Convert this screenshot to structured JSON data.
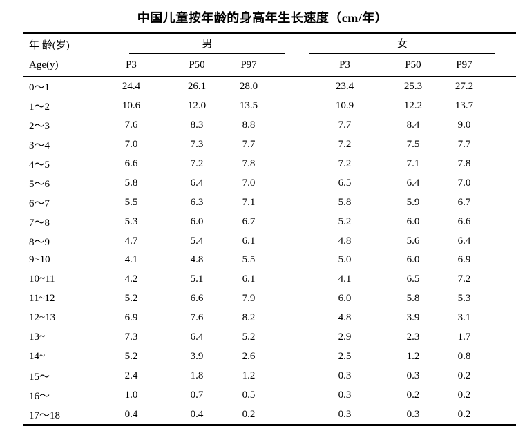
{
  "page": {
    "background": "#ffffff",
    "text_color": "#000000",
    "rule_color": "#000000"
  },
  "title": "中国儿童按年龄的身高年生长速度（cm/年）",
  "table": {
    "age_header": {
      "line1": "年 龄(岁)",
      "line2": "Age(y)"
    },
    "groups": {
      "male_label": "男",
      "female_label": "女"
    },
    "percentile_headers": [
      "P3",
      "P50",
      "P97"
    ],
    "rows": [
      {
        "age": "0～1",
        "male": [
          "24.4",
          "26.1",
          "28.0"
        ],
        "female": [
          "23.4",
          "25.3",
          "27.2"
        ]
      },
      {
        "age": "1～2",
        "male": [
          "10.6",
          "12.0",
          "13.5"
        ],
        "female": [
          "10.9",
          "12.2",
          "13.7"
        ]
      },
      {
        "age": "2～3",
        "male": [
          "7.6",
          "8.3",
          "8.8"
        ],
        "female": [
          "7.7",
          "8.4",
          "9.0"
        ]
      },
      {
        "age": "3～4",
        "male": [
          "7.0",
          "7.3",
          "7.7"
        ],
        "female": [
          "7.2",
          "7.5",
          "7.7"
        ]
      },
      {
        "age": "4～5",
        "male": [
          "6.6",
          "7.2",
          "7.8"
        ],
        "female": [
          "7.2",
          "7.1",
          "7.8"
        ]
      },
      {
        "age": "5～6",
        "male": [
          "5.8",
          "6.4",
          "7.0"
        ],
        "female": [
          "6.5",
          "6.4",
          "7.0"
        ]
      },
      {
        "age": "6～7",
        "male": [
          "5.5",
          "6.3",
          "7.1"
        ],
        "female": [
          "5.8",
          "5.9",
          "6.7"
        ]
      },
      {
        "age": "7～8",
        "male": [
          "5.3",
          "6.0",
          "6.7"
        ],
        "female": [
          "5.2",
          "6.0",
          "6.6"
        ]
      },
      {
        "age": "8～9",
        "male": [
          "4.7",
          "5.4",
          "6.1"
        ],
        "female": [
          "4.8",
          "5.6",
          "6.4"
        ]
      },
      {
        "age": "9~10",
        "male": [
          "4.1",
          "4.8",
          "5.5"
        ],
        "female": [
          "5.0",
          "6.0",
          "6.9"
        ]
      },
      {
        "age": "10~11",
        "male": [
          "4.2",
          "5.1",
          "6.1"
        ],
        "female": [
          "4.1",
          "6.5",
          "7.2"
        ]
      },
      {
        "age": "11~12",
        "male": [
          "5.2",
          "6.6",
          "7.9"
        ],
        "female": [
          "6.0",
          "5.8",
          "5.3"
        ]
      },
      {
        "age": "12~13",
        "male": [
          "6.9",
          "7.6",
          "8.2"
        ],
        "female": [
          "4.8",
          "3.9",
          "3.1"
        ]
      },
      {
        "age": "13~",
        "male": [
          "7.3",
          "6.4",
          "5.2"
        ],
        "female": [
          "2.9",
          "2.3",
          "1.7"
        ]
      },
      {
        "age": "14~",
        "male": [
          "5.2",
          "3.9",
          "2.6"
        ],
        "female": [
          "2.5",
          "1.2",
          "0.8"
        ]
      },
      {
        "age": "15～",
        "male": [
          "2.4",
          "1.8",
          "1.2"
        ],
        "female": [
          "0.3",
          "0.3",
          "0.2"
        ]
      },
      {
        "age": "16～",
        "male": [
          "1.0",
          "0.7",
          "0.5"
        ],
        "female": [
          "0.3",
          "0.2",
          "0.2"
        ]
      },
      {
        "age": "17～18",
        "male": [
          "0.4",
          "0.4",
          "0.2"
        ],
        "female": [
          "0.3",
          "0.3",
          "0.2"
        ]
      }
    ]
  }
}
